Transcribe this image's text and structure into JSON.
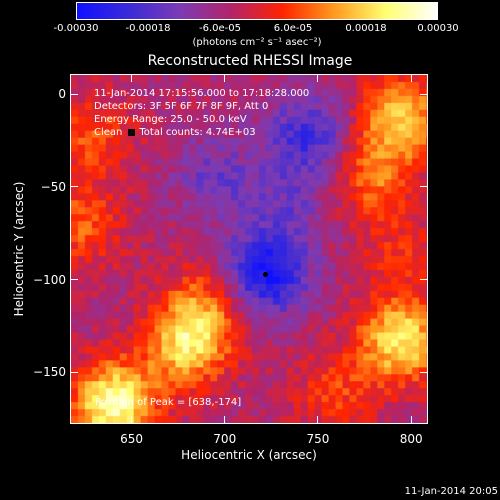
{
  "colorbar": {
    "ticks": [
      "-0.00030",
      "-0.00018",
      "-6.0e-05",
      "6.0e-05",
      "0.00018",
      "0.00030"
    ],
    "unit": "(photons cm⁻² s⁻¹ asec⁻²)",
    "colors": [
      "#1010ff",
      "#3a2bd8",
      "#7c3bb4",
      "#b2246a",
      "#ff2400",
      "#ff9a1f",
      "#ffff70",
      "#ffffff"
    ]
  },
  "annotations": {
    "time_range": "11-Jan-2014 17:15:56.000 to 17:18:28.000",
    "detectors": "Detectors: 3F 5F 6F 7F 8F 9F, Att 0",
    "energy": "Energy Range: 25.0 - 50.0 keV",
    "clean_prefix": "Clean",
    "total_counts": "Total counts: 4.74E+03",
    "peak": "Position of Peak = [638,-174]"
  },
  "footer": {
    "timestamp": "11-Jan-2014 20:05"
  },
  "chart_data": {
    "type": "heatmap",
    "title": "Reconstructed RHESSI Image",
    "xlabel": "Heliocentric X (arcsec)",
    "ylabel": "Heliocentric Y (arcsec)",
    "xlim": [
      617,
      809
    ],
    "ylim": [
      -178,
      11
    ],
    "xticks": [
      650,
      700,
      750,
      800
    ],
    "yticks": [
      0,
      -50,
      -100,
      -150
    ],
    "clim": [
      -0.0003,
      0.0003
    ],
    "peak_position": [
      638,
      -174
    ],
    "minimum_marker": [
      722,
      -97
    ],
    "sources": [
      {
        "x": 795,
        "y": -12,
        "value": 0.00022
      },
      {
        "x": 780,
        "y": -45,
        "value": 0.00014
      },
      {
        "x": 628,
        "y": -22,
        "value": 0.00012
      },
      {
        "x": 622,
        "y": -70,
        "value": 0.00013
      },
      {
        "x": 640,
        "y": -167,
        "value": 0.0003
      },
      {
        "x": 680,
        "y": -135,
        "value": 0.00024
      },
      {
        "x": 690,
        "y": -112,
        "value": 0.00012
      },
      {
        "x": 795,
        "y": -133,
        "value": 0.00026
      },
      {
        "x": 760,
        "y": -162,
        "value": 0.0001
      },
      {
        "x": 795,
        "y": -85,
        "value": 8e-05
      },
      {
        "x": 722,
        "y": -97,
        "value": -0.00024
      },
      {
        "x": 745,
        "y": -22,
        "value": -0.00016
      },
      {
        "x": 695,
        "y": -45,
        "value": -0.0001
      },
      {
        "x": 735,
        "y": -60,
        "value": -8e-05
      }
    ]
  }
}
